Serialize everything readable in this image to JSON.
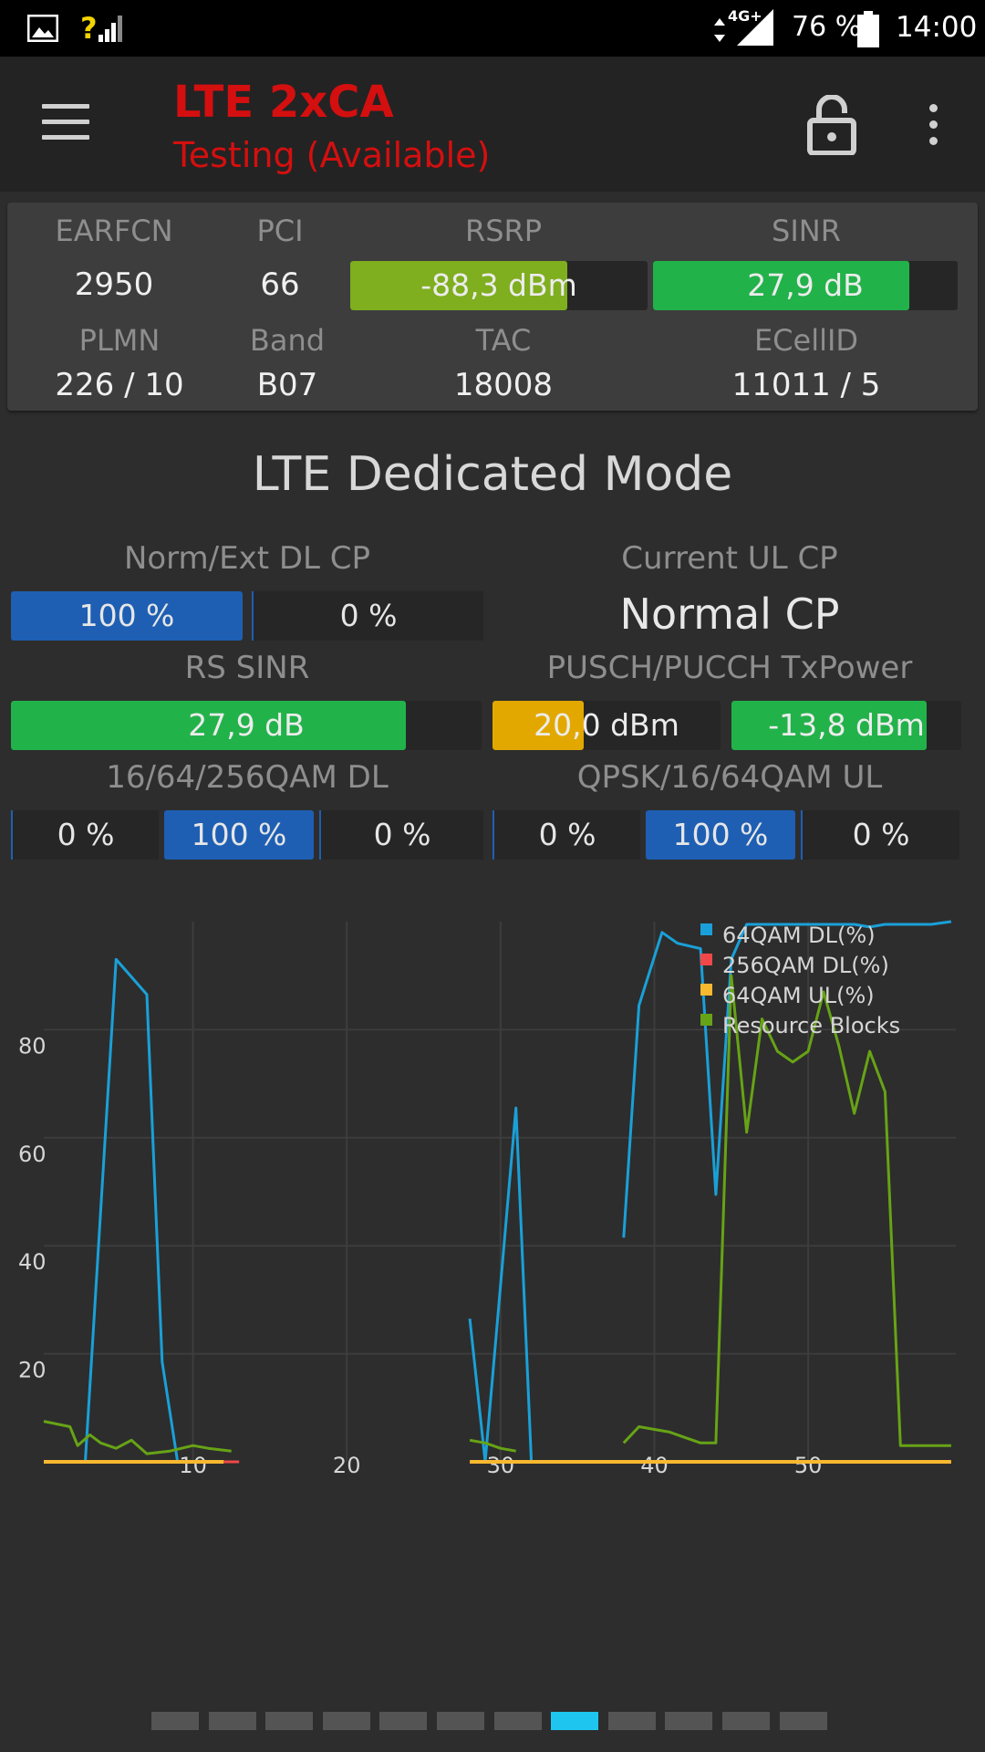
{
  "status_bar": {
    "icons": [
      "image-icon",
      "signal-unknown-icon",
      "data-arrows-icon",
      "signal-icon",
      "battery-icon"
    ],
    "network": "4G+",
    "battery": "76 %",
    "time": "14:00"
  },
  "toolbar": {
    "title": "LTE 2xCA",
    "subtitle": "Testing (Available)",
    "title_color": "#d40f0f"
  },
  "cell": {
    "earfcn_label": "EARFCN",
    "earfcn": "2950",
    "pci_label": "PCI",
    "pci": "66",
    "rsrp_label": "RSRP",
    "rsrp": "-88,3 dBm",
    "rsrp_fill": 0.73,
    "sinr_label": "SINR",
    "sinr": "27,9 dB",
    "sinr_fill": 0.84,
    "plmn_label": "PLMN",
    "plmn": "226 / 10",
    "band_label": "Band",
    "band": "B07",
    "tac_label": "TAC",
    "tac": "18008",
    "ecellid_label": "ECellID",
    "ecellid": "11011 / 5"
  },
  "mode_title": "LTE Dedicated Mode",
  "dl_cp": {
    "label": "Norm/Ext DL CP",
    "norm": "100 %",
    "ext": "0 %"
  },
  "ul_cp": {
    "label": "Current UL CP",
    "value": "Normal CP"
  },
  "rs_sinr": {
    "label": "RS SINR",
    "value": "27,9 dB",
    "fill": 0.84
  },
  "tx_power": {
    "label": "PUSCH/PUCCH TxPower",
    "pusch": "20,0 dBm",
    "pusch_fill": 0.4,
    "pucch": "-13,8 dBm",
    "pucch_fill": 0.85
  },
  "qam_dl": {
    "label": "16/64/256QAM DL",
    "values": [
      "0 %",
      "100 %",
      "0 %"
    ]
  },
  "qam_ul": {
    "label": "QPSK/16/64QAM UL",
    "values": [
      "0 %",
      "100 %",
      "0 %"
    ]
  },
  "colors": {
    "rsrp": "#7fae1f",
    "sinr": "#22b24a",
    "pusch": "#e2a800",
    "blue": "#1e5fb3",
    "dl64": "#1aa0d8",
    "dl256": "#f04848",
    "ul64": "#f8b830",
    "rb": "#67a316"
  },
  "chart_data": {
    "type": "line",
    "yticks": [
      20,
      40,
      60,
      80
    ],
    "xticks": [
      10,
      20,
      30,
      40,
      50
    ],
    "xlim": [
      0.3,
      59.6
    ],
    "ylim": [
      0,
      100
    ],
    "series": [
      {
        "name": "64QAM DL(%)",
        "color": "#1aa0d8",
        "segments": [
          [
            [
              3,
              0
            ],
            [
              5,
              93
            ],
            [
              7,
              86.5
            ],
            [
              8,
              18.5
            ],
            [
              9,
              0
            ]
          ],
          [
            [
              28,
              26.5
            ],
            [
              29,
              0
            ],
            [
              31,
              65.5
            ],
            [
              32,
              0
            ]
          ],
          [
            [
              38,
              41.5
            ],
            [
              39,
              84.5
            ],
            [
              40.5,
              98
            ],
            [
              41.5,
              96
            ],
            [
              43,
              95
            ],
            [
              44,
              49.5
            ],
            [
              45,
              93
            ],
            [
              46,
              99.5
            ],
            [
              47,
              99.5
            ],
            [
              48,
              99.5
            ],
            [
              50,
              99.5
            ],
            [
              52,
              99.5
            ],
            [
              53,
              99.5
            ],
            [
              54,
              99
            ],
            [
              55,
              99.5
            ],
            [
              56,
              99.5
            ],
            [
              57,
              99.5
            ],
            [
              58,
              99.5
            ],
            [
              59.3,
              100
            ]
          ]
        ]
      },
      {
        "name": "256QAM DL(%)",
        "color": "#f04848",
        "segments": [
          [
            [
              12,
              0
            ],
            [
              13,
              0
            ]
          ]
        ]
      },
      {
        "name": "64QAM UL(%)",
        "color": "#f8b830",
        "segments": [
          [
            [
              0.3,
              0
            ],
            [
              12,
              0
            ]
          ],
          [
            [
              28,
              0
            ],
            [
              59.3,
              0
            ]
          ]
        ]
      },
      {
        "name": "Resource Blocks",
        "color": "#67a316",
        "segments": [
          [
            [
              0.3,
              7.5
            ],
            [
              2,
              6.5
            ],
            [
              2.5,
              3
            ],
            [
              3.3,
              5
            ],
            [
              4,
              3.5
            ],
            [
              5,
              2.5
            ],
            [
              6,
              4
            ],
            [
              7,
              1.5
            ],
            [
              8.5,
              2
            ],
            [
              10,
              3
            ],
            [
              11,
              2.5
            ],
            [
              12.5,
              2
            ]
          ],
          [
            [
              28,
              4
            ],
            [
              29,
              3.5
            ],
            [
              30,
              2.5
            ],
            [
              31,
              2
            ]
          ],
          [
            [
              38,
              3.5
            ],
            [
              39,
              6.5
            ],
            [
              40,
              6
            ],
            [
              41,
              5.5
            ],
            [
              42,
              4.5
            ],
            [
              43,
              3.5
            ],
            [
              44,
              3.5
            ],
            [
              45,
              90
            ],
            [
              46,
              61
            ],
            [
              47,
              82
            ],
            [
              48,
              76
            ],
            [
              49,
              74
            ],
            [
              50,
              76
            ],
            [
              51,
              87
            ],
            [
              52,
              77
            ],
            [
              53,
              64.5
            ],
            [
              54,
              76
            ],
            [
              55,
              68.5
            ],
            [
              56,
              3
            ],
            [
              57,
              3
            ],
            [
              58,
              3
            ],
            [
              59.3,
              3
            ]
          ]
        ]
      }
    ]
  },
  "pager": {
    "count": 12,
    "active": 7
  }
}
